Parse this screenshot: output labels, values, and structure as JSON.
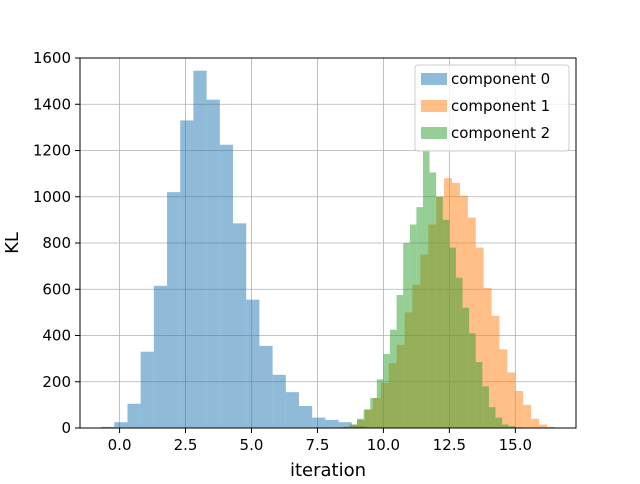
{
  "chart_data": {
    "type": "bar",
    "subtype": "overlapping-histogram",
    "title": "",
    "xlabel": "iteration",
    "ylabel": "KL",
    "xlim": [
      -1.5,
      17.3
    ],
    "ylim": [
      0,
      1600
    ],
    "grid": true,
    "legend_position": "top-right",
    "x_ticks": [
      0.0,
      2.5,
      5.0,
      7.5,
      10.0,
      12.5,
      15.0
    ],
    "x_tick_labels": [
      "0.0",
      "2.5",
      "5.0",
      "7.5",
      "10.0",
      "12.5",
      "15.0"
    ],
    "y_ticks": [
      0,
      200,
      400,
      600,
      800,
      1000,
      1200,
      1400,
      1600
    ],
    "y_tick_labels": [
      "0",
      "200",
      "400",
      "600",
      "800",
      "1000",
      "1200",
      "1400",
      "1600"
    ],
    "alpha": 0.5,
    "series": [
      {
        "name": "component 0",
        "color": "#1f77b4",
        "bin_start": -0.7,
        "bin_width": 0.5,
        "counts": [
          5,
          25,
          105,
          330,
          615,
          1020,
          1330,
          1545,
          1420,
          1225,
          885,
          555,
          355,
          230,
          155,
          95,
          45,
          35,
          25,
          8,
          3
        ]
      },
      {
        "name": "component 1",
        "color": "#ff7f0e",
        "bin_start": 8.4,
        "bin_width": 0.3,
        "counts": [
          5,
          15,
          35,
          80,
          130,
          195,
          280,
          360,
          500,
          620,
          750,
          880,
          1000,
          1080,
          1060,
          1005,
          910,
          780,
          605,
          485,
          340,
          240,
          160,
          100,
          40,
          15,
          5
        ]
      },
      {
        "name": "component 2",
        "color": "#2ca02c",
        "bin_start": 8.5,
        "bin_width": 0.25,
        "counts": [
          5,
          15,
          40,
          80,
          130,
          210,
          320,
          425,
          575,
          800,
          880,
          955,
          1205,
          1105,
          1000,
          900,
          780,
          650,
          520,
          410,
          285,
          180,
          90,
          45,
          15,
          8,
          3
        ]
      }
    ]
  }
}
